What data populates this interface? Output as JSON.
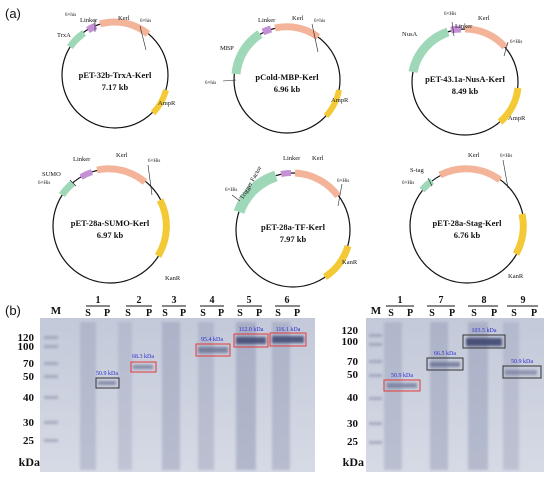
{
  "panel_labels": {
    "a": "(a)",
    "b": "(b)"
  },
  "colors": {
    "fusion_tag": "#9fd8b9",
    "kerl": "#f3b49a",
    "linker": "#c58fd6",
    "resistance": "#f3c935",
    "box_red": "#e23a3a",
    "box_dark": "#333333",
    "band_label": "#2a2ad0",
    "gel_bg": "#cfd4e1"
  },
  "plasmids": [
    {
      "name": "pET-32b-TrxA-Kerl",
      "size": "7.17 kb",
      "tag": "TrxA",
      "linker": "Linker",
      "gene": "Kerl",
      "his_labels": [
        "6×his",
        "6×his"
      ],
      "resistance": "AmpR"
    },
    {
      "name": "pCold-MBP-Kerl",
      "size": "6.96 kb",
      "tag": "MBP",
      "linker": "Linker",
      "gene": "Kerl",
      "his_labels": [
        "6×his",
        "6×his"
      ],
      "resistance": "AmpR"
    },
    {
      "name": "pET-43.1a-NusA-Kerl",
      "size": "8.49 kb",
      "tag": "NusA",
      "linker": "Linker",
      "gene": "Kerl",
      "his_labels": [
        "6×His",
        "6×His"
      ],
      "resistance": "AmpR"
    },
    {
      "name": "pET-28a-SUMO-Kerl",
      "size": "6.97 kb",
      "tag": "SUMO",
      "linker": "Linker",
      "gene": "Kerl",
      "his_labels": [
        "6×His",
        "6×His"
      ],
      "resistance": "KanR"
    },
    {
      "name": "pET-28a-TF-Kerl",
      "size": "7.97 kb",
      "tag": "Trigger Factor",
      "linker": "Linker",
      "gene": "Kerl",
      "his_labels": [
        "6×His",
        "6×His"
      ],
      "resistance": "KanR"
    },
    {
      "name": "pET-28a-Stag-Kerl",
      "size": "6.76 kb",
      "tag": "S-tag",
      "linker": "",
      "gene": "Kerl",
      "his_labels": [
        "6×His",
        "6×His"
      ],
      "resistance": "KanR"
    }
  ],
  "gels": [
    {
      "marker": "M",
      "mw_unit": "kDa",
      "mw_labels": [
        "120",
        "100",
        "70",
        "50",
        "40",
        "30",
        "25"
      ],
      "lanes": [
        "1",
        "2",
        "3",
        "4",
        "5",
        "6"
      ],
      "sp": [
        "S",
        "P"
      ],
      "bands": [
        "50.9 kDa",
        "68.3 kDa",
        "95.4 kDa",
        "112.0 kDa",
        "116.1 kDa"
      ]
    },
    {
      "marker": "M",
      "mw_unit": "kDa",
      "mw_labels": [
        "120",
        "100",
        "70",
        "50",
        "40",
        "30",
        "25"
      ],
      "lanes": [
        "1",
        "7",
        "8",
        "9"
      ],
      "sp": [
        "S",
        "P"
      ],
      "bands": [
        "50.9 kDa",
        "66.5 kDa",
        "103.5 kDa",
        "50.9 kDa"
      ]
    }
  ]
}
